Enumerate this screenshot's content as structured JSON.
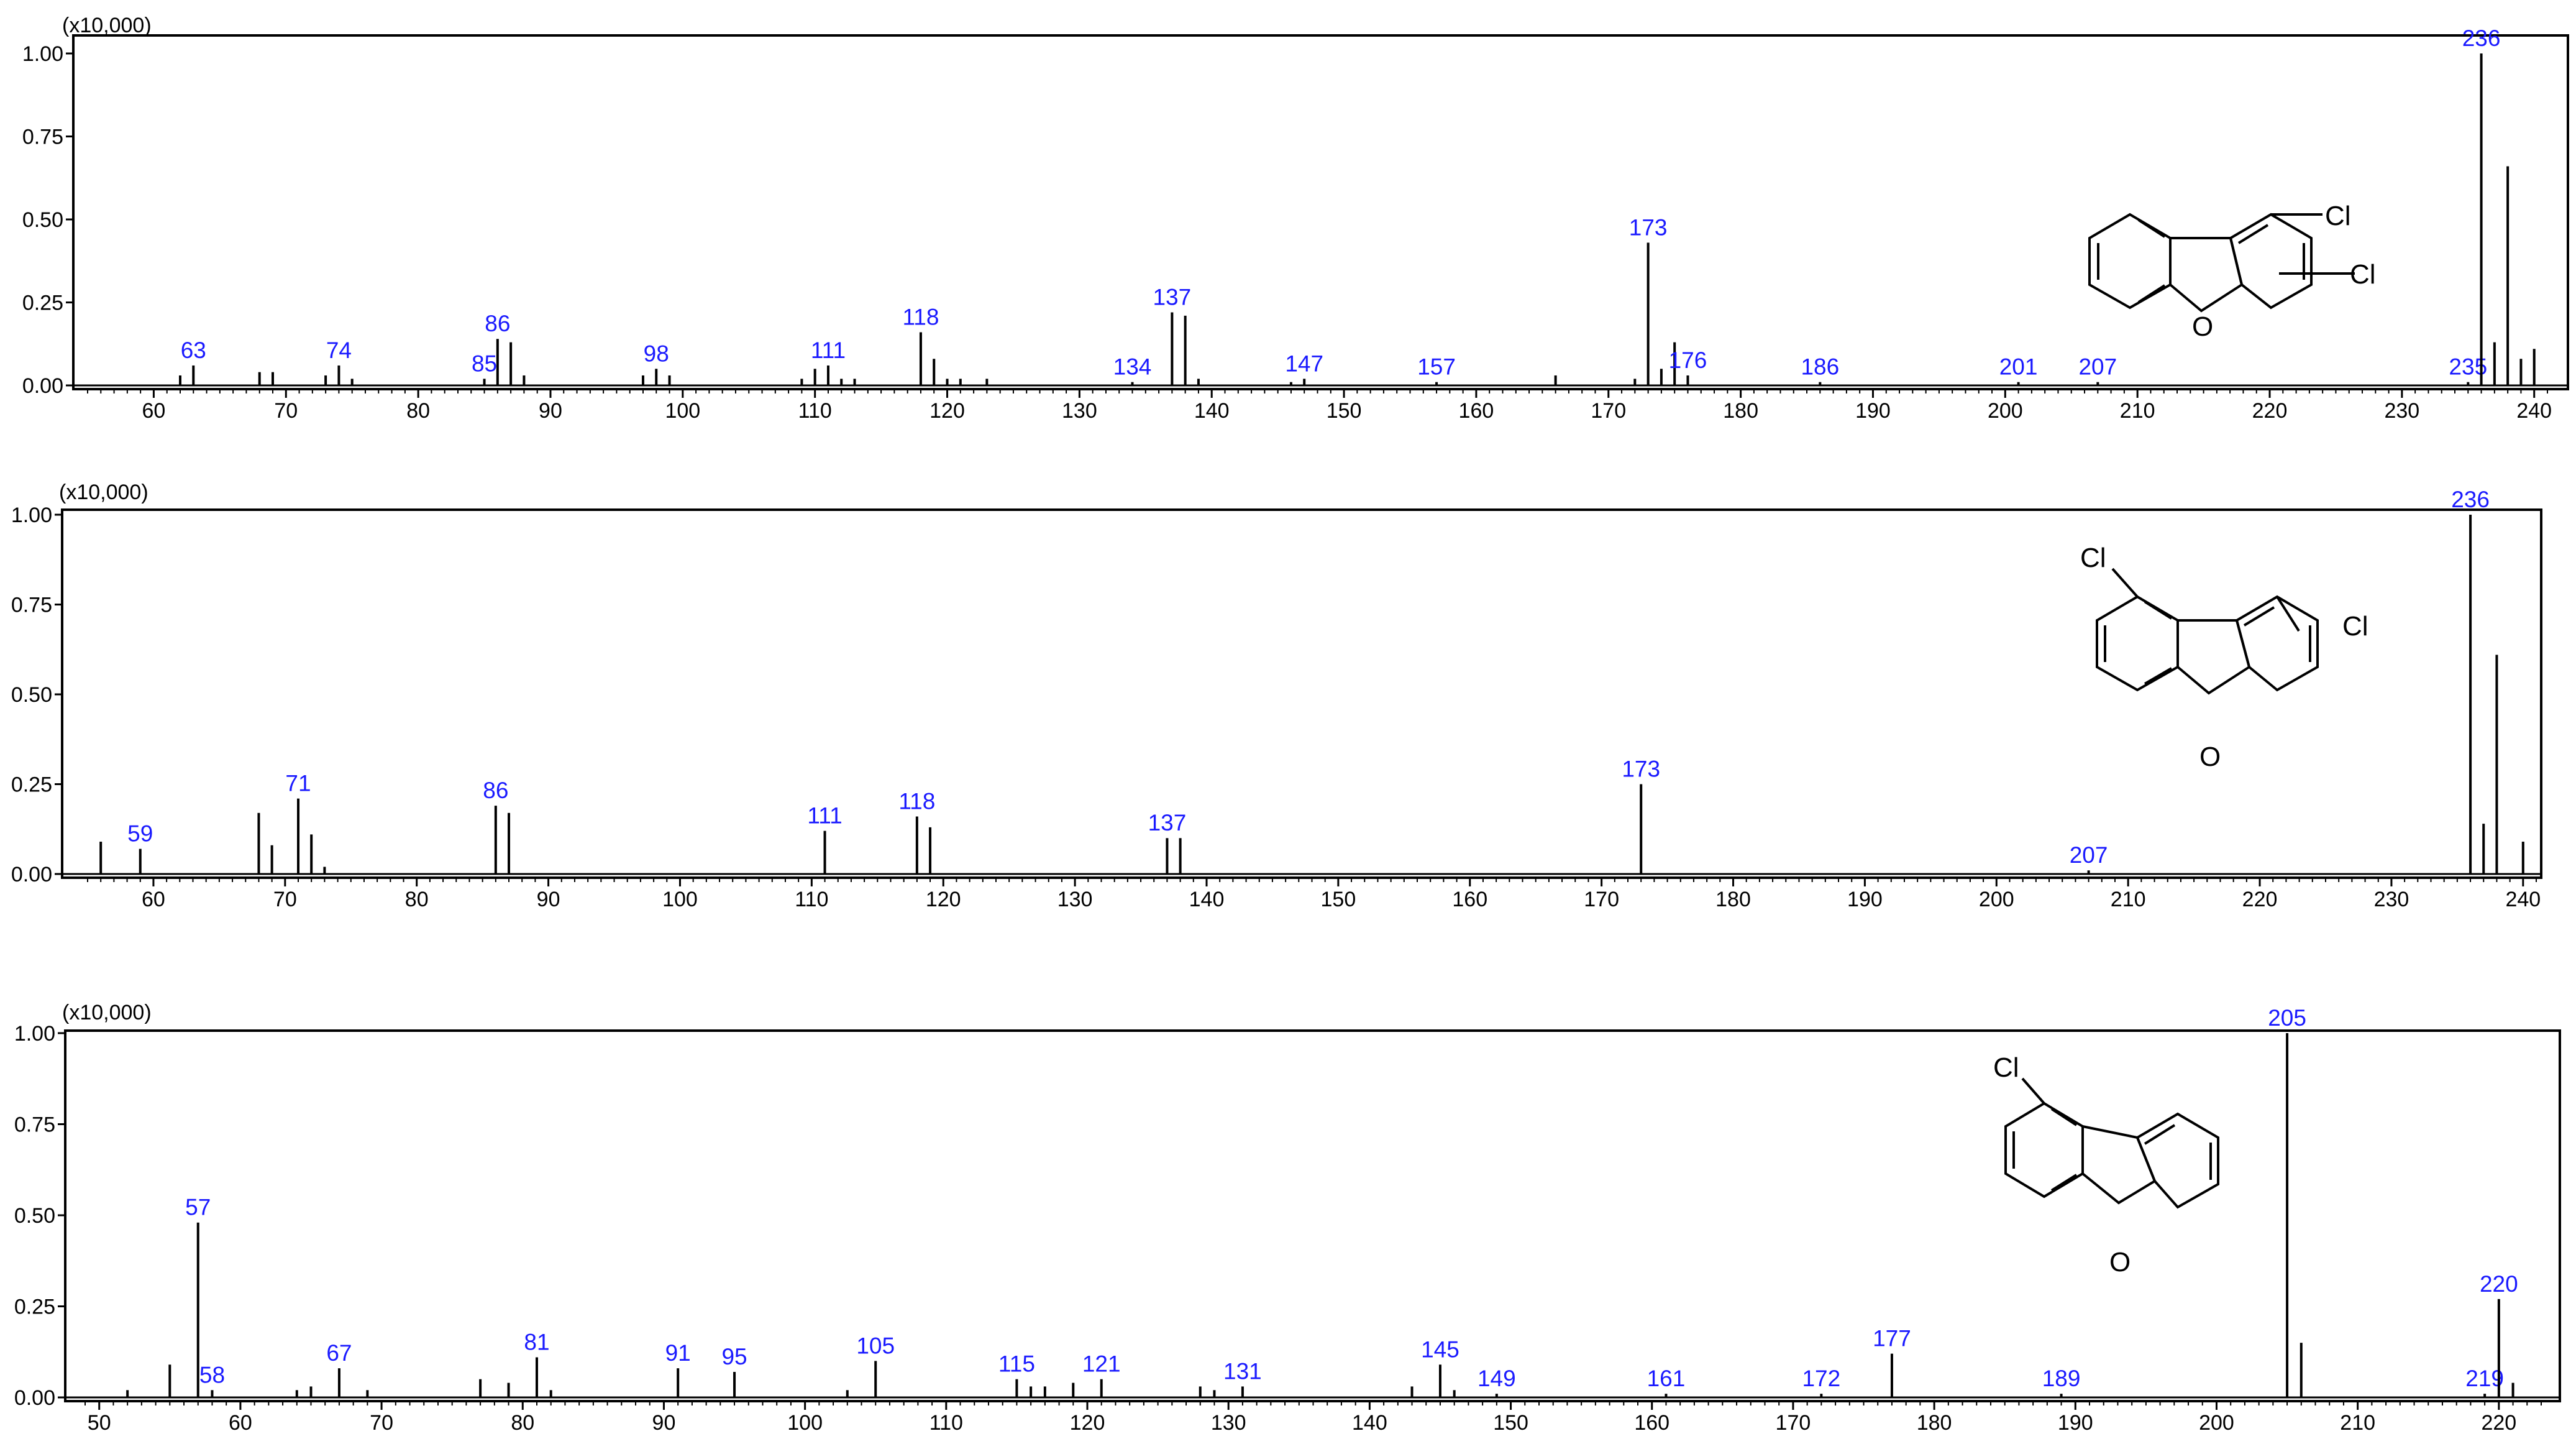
{
  "chart_data": [
    {
      "type": "bar",
      "scale_label": "(x10,000)",
      "xlim": [
        55,
        241
      ],
      "ylim": [
        0,
        1.0
      ],
      "x_ticks": [
        60,
        70,
        80,
        90,
        100,
        110,
        120,
        130,
        140,
        150,
        160,
        170,
        180,
        190,
        200,
        210,
        220,
        230,
        240
      ],
      "y_ticks": [
        "0.00",
        "0.25",
        "0.50",
        "0.75",
        "1.00"
      ],
      "y_tick_values": [
        0,
        0.25,
        0.5,
        0.75,
        1.0
      ],
      "peaks": [
        {
          "x": 62,
          "y": 0.03
        },
        {
          "x": 63,
          "y": 0.06,
          "label": "63"
        },
        {
          "x": 68,
          "y": 0.04
        },
        {
          "x": 69,
          "y": 0.04
        },
        {
          "x": 73,
          "y": 0.03
        },
        {
          "x": 74,
          "y": 0.06,
          "label": "74"
        },
        {
          "x": 75,
          "y": 0.02
        },
        {
          "x": 85,
          "y": 0.02,
          "label": "85"
        },
        {
          "x": 86,
          "y": 0.14,
          "label": "86"
        },
        {
          "x": 87,
          "y": 0.13
        },
        {
          "x": 88,
          "y": 0.03
        },
        {
          "x": 97,
          "y": 0.03
        },
        {
          "x": 98,
          "y": 0.05,
          "label": "98"
        },
        {
          "x": 99,
          "y": 0.03
        },
        {
          "x": 109,
          "y": 0.02
        },
        {
          "x": 110,
          "y": 0.05
        },
        {
          "x": 111,
          "y": 0.06,
          "label": "111"
        },
        {
          "x": 112,
          "y": 0.02
        },
        {
          "x": 113,
          "y": 0.02
        },
        {
          "x": 118,
          "y": 0.16,
          "label": "118"
        },
        {
          "x": 119,
          "y": 0.08
        },
        {
          "x": 120,
          "y": 0.02
        },
        {
          "x": 121,
          "y": 0.02
        },
        {
          "x": 123,
          "y": 0.02
        },
        {
          "x": 134,
          "y": 0.01,
          "label": "134"
        },
        {
          "x": 137,
          "y": 0.22,
          "label": "137"
        },
        {
          "x": 138,
          "y": 0.21
        },
        {
          "x": 139,
          "y": 0.02
        },
        {
          "x": 146,
          "y": 0.01
        },
        {
          "x": 147,
          "y": 0.02,
          "label": "147"
        },
        {
          "x": 157,
          "y": 0.01,
          "label": "157"
        },
        {
          "x": 166,
          "y": 0.03
        },
        {
          "x": 172,
          "y": 0.02
        },
        {
          "x": 173,
          "y": 0.43,
          "label": "173"
        },
        {
          "x": 174,
          "y": 0.05
        },
        {
          "x": 175,
          "y": 0.13
        },
        {
          "x": 176,
          "y": 0.03,
          "label": "176"
        },
        {
          "x": 186,
          "y": 0.01,
          "label": "186"
        },
        {
          "x": 201,
          "y": 0.01,
          "label": "201"
        },
        {
          "x": 207,
          "y": 0.01,
          "label": "207"
        },
        {
          "x": 235,
          "y": 0.01,
          "label": "235"
        },
        {
          "x": 236,
          "y": 1.0,
          "label": "236"
        },
        {
          "x": 237,
          "y": 0.13
        },
        {
          "x": 238,
          "y": 0.66
        },
        {
          "x": 239,
          "y": 0.08
        },
        {
          "x": 240,
          "y": 0.11
        }
      ],
      "structure_labels": [
        "Cl",
        "Cl",
        "O"
      ]
    },
    {
      "type": "bar",
      "scale_label": "(x10,000)",
      "xlim": [
        55,
        241
      ],
      "ylim": [
        0,
        1.0
      ],
      "x_ticks": [
        60,
        70,
        80,
        90,
        100,
        110,
        120,
        130,
        140,
        150,
        160,
        170,
        180,
        190,
        200,
        210,
        220,
        230,
        240
      ],
      "y_ticks": [
        "0.00",
        "0.25",
        "0.50",
        "0.75",
        "1.00"
      ],
      "y_tick_values": [
        0,
        0.25,
        0.5,
        0.75,
        1.0
      ],
      "peaks": [
        {
          "x": 56,
          "y": 0.09
        },
        {
          "x": 59,
          "y": 0.07,
          "label": "59"
        },
        {
          "x": 68,
          "y": 0.17
        },
        {
          "x": 69,
          "y": 0.08
        },
        {
          "x": 71,
          "y": 0.21,
          "label": "71"
        },
        {
          "x": 72,
          "y": 0.11
        },
        {
          "x": 73,
          "y": 0.02
        },
        {
          "x": 86,
          "y": 0.19,
          "label": "86"
        },
        {
          "x": 87,
          "y": 0.17
        },
        {
          "x": 111,
          "y": 0.12,
          "label": "111"
        },
        {
          "x": 118,
          "y": 0.16,
          "label": "118"
        },
        {
          "x": 119,
          "y": 0.13
        },
        {
          "x": 137,
          "y": 0.1,
          "label": "137"
        },
        {
          "x": 138,
          "y": 0.1
        },
        {
          "x": 173,
          "y": 0.25,
          "label": "173"
        },
        {
          "x": 207,
          "y": 0.01,
          "label": "207"
        },
        {
          "x": 236,
          "y": 1.0,
          "label": "236"
        },
        {
          "x": 237,
          "y": 0.14
        },
        {
          "x": 238,
          "y": 0.61
        },
        {
          "x": 240,
          "y": 0.09
        }
      ],
      "structure_labels": [
        "Cl",
        "Cl",
        "O"
      ]
    },
    {
      "type": "bar",
      "scale_label": "(x10,000)",
      "xlim": [
        49,
        223
      ],
      "ylim": [
        0,
        1.0
      ],
      "x_ticks": [
        50,
        60,
        70,
        80,
        90,
        100,
        110,
        120,
        130,
        140,
        150,
        160,
        170,
        180,
        190,
        200,
        210,
        220
      ],
      "y_ticks": [
        "0.00",
        "0.25",
        "0.50",
        "0.75",
        "1.00"
      ],
      "y_tick_values": [
        0,
        0.25,
        0.5,
        0.75,
        1.0
      ],
      "peaks": [
        {
          "x": 52,
          "y": 0.02
        },
        {
          "x": 55,
          "y": 0.09
        },
        {
          "x": 57,
          "y": 0.48,
          "label": "57"
        },
        {
          "x": 58,
          "y": 0.02,
          "label": "58"
        },
        {
          "x": 64,
          "y": 0.02
        },
        {
          "x": 65,
          "y": 0.03
        },
        {
          "x": 67,
          "y": 0.08,
          "label": "67"
        },
        {
          "x": 69,
          "y": 0.02
        },
        {
          "x": 77,
          "y": 0.05
        },
        {
          "x": 79,
          "y": 0.04
        },
        {
          "x": 81,
          "y": 0.11,
          "label": "81"
        },
        {
          "x": 82,
          "y": 0.02
        },
        {
          "x": 91,
          "y": 0.08,
          "label": "91"
        },
        {
          "x": 95,
          "y": 0.07,
          "label": "95"
        },
        {
          "x": 103,
          "y": 0.02
        },
        {
          "x": 105,
          "y": 0.1,
          "label": "105"
        },
        {
          "x": 115,
          "y": 0.05,
          "label": "115"
        },
        {
          "x": 116,
          "y": 0.03
        },
        {
          "x": 117,
          "y": 0.03
        },
        {
          "x": 119,
          "y": 0.04
        },
        {
          "x": 121,
          "y": 0.05,
          "label": "121"
        },
        {
          "x": 128,
          "y": 0.03
        },
        {
          "x": 129,
          "y": 0.02
        },
        {
          "x": 131,
          "y": 0.03,
          "label": "131"
        },
        {
          "x": 143,
          "y": 0.03
        },
        {
          "x": 145,
          "y": 0.09,
          "label": "145"
        },
        {
          "x": 146,
          "y": 0.02
        },
        {
          "x": 149,
          "y": 0.01,
          "label": "149"
        },
        {
          "x": 161,
          "y": 0.01,
          "label": "161"
        },
        {
          "x": 172,
          "y": 0.01,
          "label": "172"
        },
        {
          "x": 177,
          "y": 0.12,
          "label": "177"
        },
        {
          "x": 189,
          "y": 0.01,
          "label": "189"
        },
        {
          "x": 205,
          "y": 1.0,
          "label": "205"
        },
        {
          "x": 206,
          "y": 0.15
        },
        {
          "x": 219,
          "y": 0.01,
          "label": "219"
        },
        {
          "x": 220,
          "y": 0.27,
          "label": "220"
        },
        {
          "x": 221,
          "y": 0.04
        }
      ],
      "structure_labels": [
        "Cl",
        "O"
      ]
    }
  ]
}
